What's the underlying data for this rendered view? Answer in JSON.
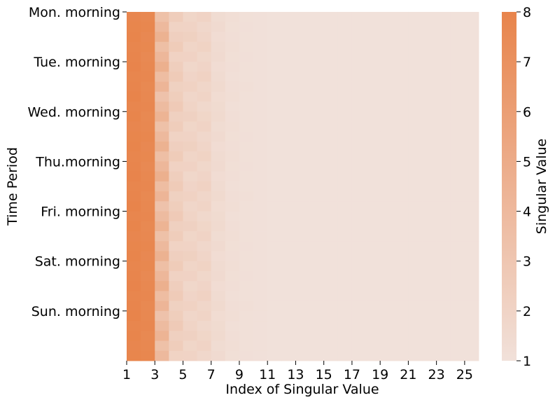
{
  "chart_data": {
    "type": "heatmap",
    "xlabel": "Index of Singular Value",
    "ylabel": "Time Period",
    "colorbar_label": "Singular Value",
    "colorbar_ticks": [
      "1",
      "2",
      "3",
      "4",
      "5",
      "6",
      "7",
      "8"
    ],
    "x_tick_labels": [
      "1",
      "3",
      "5",
      "7",
      "9",
      "11",
      "13",
      "15",
      "17",
      "19",
      "21",
      "23",
      "25"
    ],
    "y_tick_labels": [
      "Mon. morning",
      "Tue. morning",
      "Wed. morning",
      "Thu.morning",
      "Fri. morning",
      "Sat. morning",
      "Sun. morning"
    ],
    "n_columns": 25,
    "n_rows": 35,
    "value_range": [
      1,
      8
    ],
    "color_low": "#f1e1da",
    "color_high": "#e8844b",
    "column_profile": [
      7.9,
      7.7,
      4.0,
      2.4,
      2.0,
      1.9,
      1.45,
      1.2,
      1.1,
      1.05,
      1.02,
      1.0,
      1.0,
      1.0,
      1.0,
      1.0,
      1.0,
      1.0,
      1.0,
      1.0,
      1.0,
      1.0,
      1.0,
      1.0,
      1.0
    ]
  }
}
